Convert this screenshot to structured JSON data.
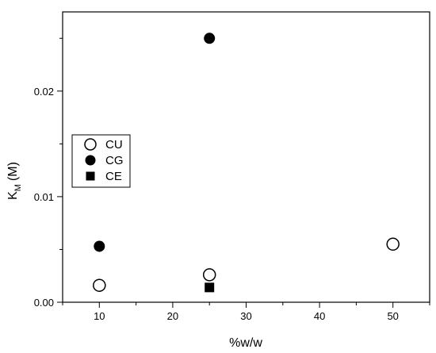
{
  "chart_data": {
    "type": "scatter",
    "xlabel": "%w/w",
    "ylabel_main": "K",
    "ylabel_sub": "M",
    "ylabel_unit": "(M)",
    "xlim": [
      5,
      55
    ],
    "ylim": [
      0,
      0.0275
    ],
    "x_ticks": [
      10,
      20,
      30,
      40,
      50
    ],
    "x_tick_labels": [
      "10",
      "20",
      "30",
      "40",
      "50"
    ],
    "y_ticks": [
      0.0,
      0.01,
      0.02
    ],
    "y_tick_labels": [
      "0.00",
      "0.01",
      "0.02"
    ],
    "grid": false,
    "legend_position": "left-middle",
    "series": [
      {
        "name": "CU",
        "marker": "open-circle",
        "x": [
          10,
          25,
          50
        ],
        "y": [
          0.0016,
          0.0026,
          0.0055
        ]
      },
      {
        "name": "CG",
        "marker": "filled-circle",
        "x": [
          10,
          25
        ],
        "y": [
          0.0053,
          0.025
        ]
      },
      {
        "name": "CE",
        "marker": "filled-square",
        "x": [
          25
        ],
        "y": [
          0.0014
        ]
      }
    ]
  }
}
